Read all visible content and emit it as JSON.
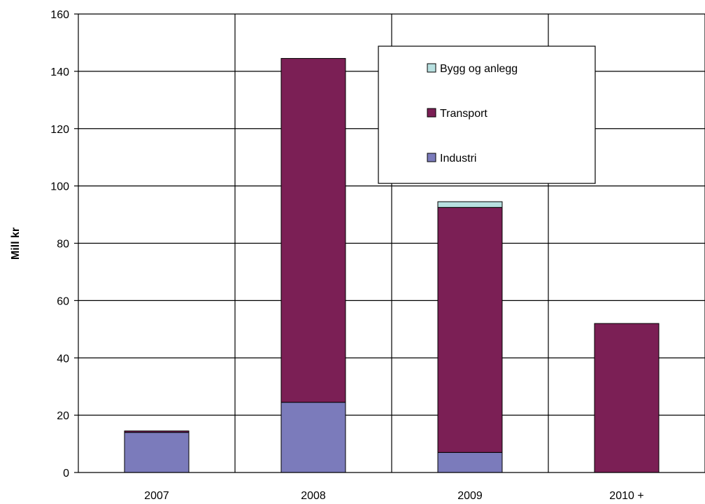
{
  "chart_data": {
    "type": "bar",
    "stacked": true,
    "title": "",
    "xlabel": "",
    "ylabel": "Mill kr",
    "ylim": [
      0,
      160
    ],
    "yticks": [
      0,
      20,
      40,
      60,
      80,
      100,
      120,
      140,
      160
    ],
    "grid": true,
    "legend_position": "top-right",
    "categories": [
      "2007",
      "2008",
      "2009",
      "2010 +"
    ],
    "series": [
      {
        "name": "Industri",
        "color": "#7b7bbb",
        "values": [
          14,
          24.5,
          7,
          0
        ]
      },
      {
        "name": "Transport",
        "color": "#7b1f55",
        "values": [
          0.5,
          120,
          85.5,
          52
        ]
      },
      {
        "name": "Bygg og anlegg",
        "color": "#b8e0e0",
        "values": [
          0,
          0,
          2,
          0
        ]
      }
    ],
    "legend_order": [
      "Bygg og anlegg",
      "Transport",
      "Industri"
    ]
  }
}
